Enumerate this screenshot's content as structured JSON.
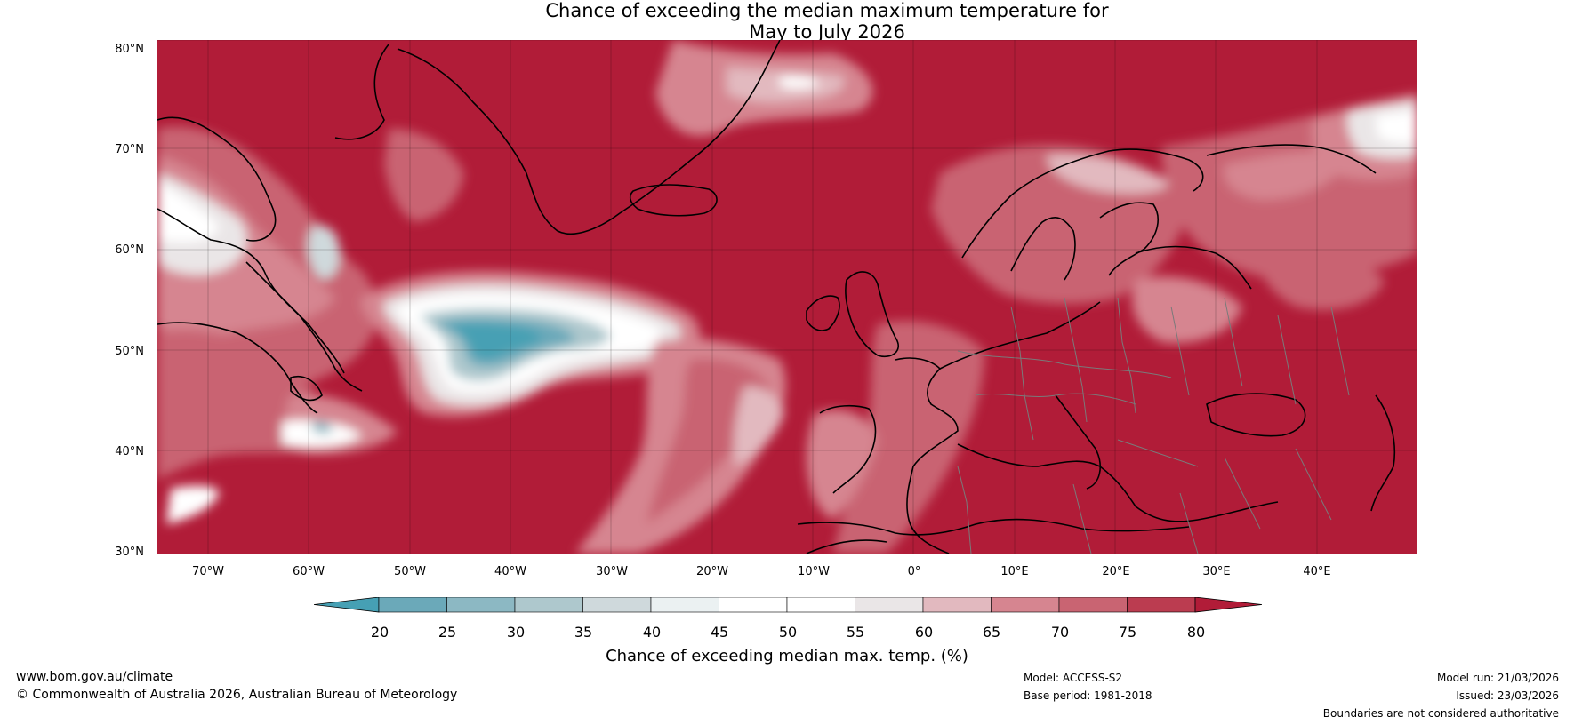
{
  "title": {
    "line1": "Chance of exceeding the median maximum temperature for",
    "line2": "May to July 2026"
  },
  "map": {
    "region": "North Atlantic and Europe",
    "lat_labels": [
      "80°N",
      "70°N",
      "60°N",
      "50°N",
      "40°N",
      "30°N"
    ],
    "lon_labels": [
      "70°W",
      "60°W",
      "50°W",
      "40°W",
      "30°W",
      "20°W",
      "10°W",
      "0°",
      "10°E",
      "20°E",
      "30°E",
      "40°E"
    ],
    "lat_range": [
      30,
      80
    ],
    "lon_range": [
      -75,
      50
    ],
    "background_color": "#b11c38",
    "grid": true
  },
  "colorbar": {
    "label": "Chance of exceeding median max. temp. (%)",
    "ticks": [
      "20",
      "25",
      "30",
      "35",
      "40",
      "45",
      "50",
      "55",
      "60",
      "65",
      "70",
      "75",
      "80"
    ],
    "colors": [
      "#46a0b4",
      "#6ba9b9",
      "#8cb8c3",
      "#aec8cd",
      "#cfd9dc",
      "#ebf1f2",
      "#ffffff",
      "#ffffff",
      "#eae6e7",
      "#e2b9bf",
      "#d68590",
      "#c96472",
      "#bb3c50",
      "#b11c38"
    ]
  },
  "footer": {
    "website": "www.bom.gov.au/climate",
    "copyright": "© Commonwealth of Australia 2026, Australian Bureau of Meteorology",
    "model": "Model: ACCESS-S2",
    "base_period": "Base period: 1981-2018",
    "model_run": "Model run: 21/03/2026",
    "issued": "Issued: 23/03/2026",
    "disclaimer": "Boundaries are not considered authoritative"
  }
}
